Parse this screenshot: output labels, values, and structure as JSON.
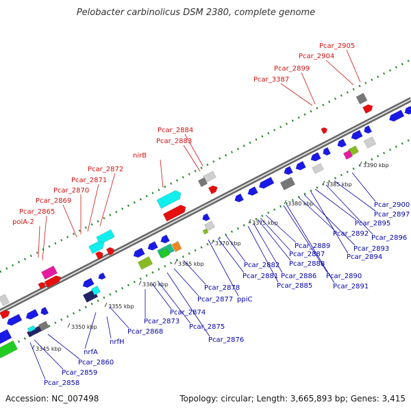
{
  "title": "Pelobacter carbinolicus DSM 2380, complete genome",
  "footer": {
    "accession": "Accession: NC_007498",
    "summary": "Topology: circular; Length: 3,665,893 bp; Genes: 3,415"
  },
  "colors": {
    "backbone": "#999999",
    "dotted_guide": "#2a8a2a",
    "forward_label": "#d01010",
    "reverse_label": "#0000aa",
    "gene_blue": "#1a1ae6",
    "gene_red": "#e60f0f",
    "gene_cyan": "#11eeee",
    "gene_green": "#22cc22",
    "gene_magenta": "#e61aa0",
    "gene_grey": "#777777",
    "gene_light": "#cfcfcf",
    "gene_olive": "#88bb22",
    "gene_navy": "#222266",
    "gene_orange": "#ee8822",
    "gene_teal": "#22bb88"
  },
  "ticks": [
    "3345 kbp",
    "3350 kbp",
    "3355 kbp",
    "3360 kbp",
    "3365 kbp",
    "3370 kbp",
    "3375 kbp",
    "3380 kbp",
    "3385 kbp",
    "3390 kbp"
  ],
  "forward_labels": [
    "polA-2",
    "Pcar_2865",
    "Pcar_2869",
    "Pcar_2870",
    "Pcar_2871",
    "Pcar_2872",
    "nirB",
    "Pcar_2883",
    "Pcar_2884",
    "Pcar_3387",
    "Pcar_2899",
    "Pcar_2904",
    "Pcar_2905"
  ],
  "reverse_labels": [
    "Pcar_2858",
    "Pcar_2859",
    "Pcar_2860",
    "nrfA",
    "nrfH",
    "Pcar_2868",
    "Pcar_2873",
    "Pcar_2874",
    "Pcar_2875",
    "Pcar_2876",
    "Pcar_2877",
    "Pcar_2878",
    "ppiC",
    "Pcar_2881",
    "Pcar_2882",
    "Pcar_2885",
    "Pcar_2886",
    "Pcar_2887",
    "Pcar_2888",
    "Pcar_2889",
    "Pcar_2890",
    "Pcar_2891",
    "Pcar_2892",
    "Pcar_2893",
    "Pcar_2894",
    "Pcar_2895",
    "Pcar_2896",
    "Pcar_2897",
    "Pcar_2900"
  ]
}
